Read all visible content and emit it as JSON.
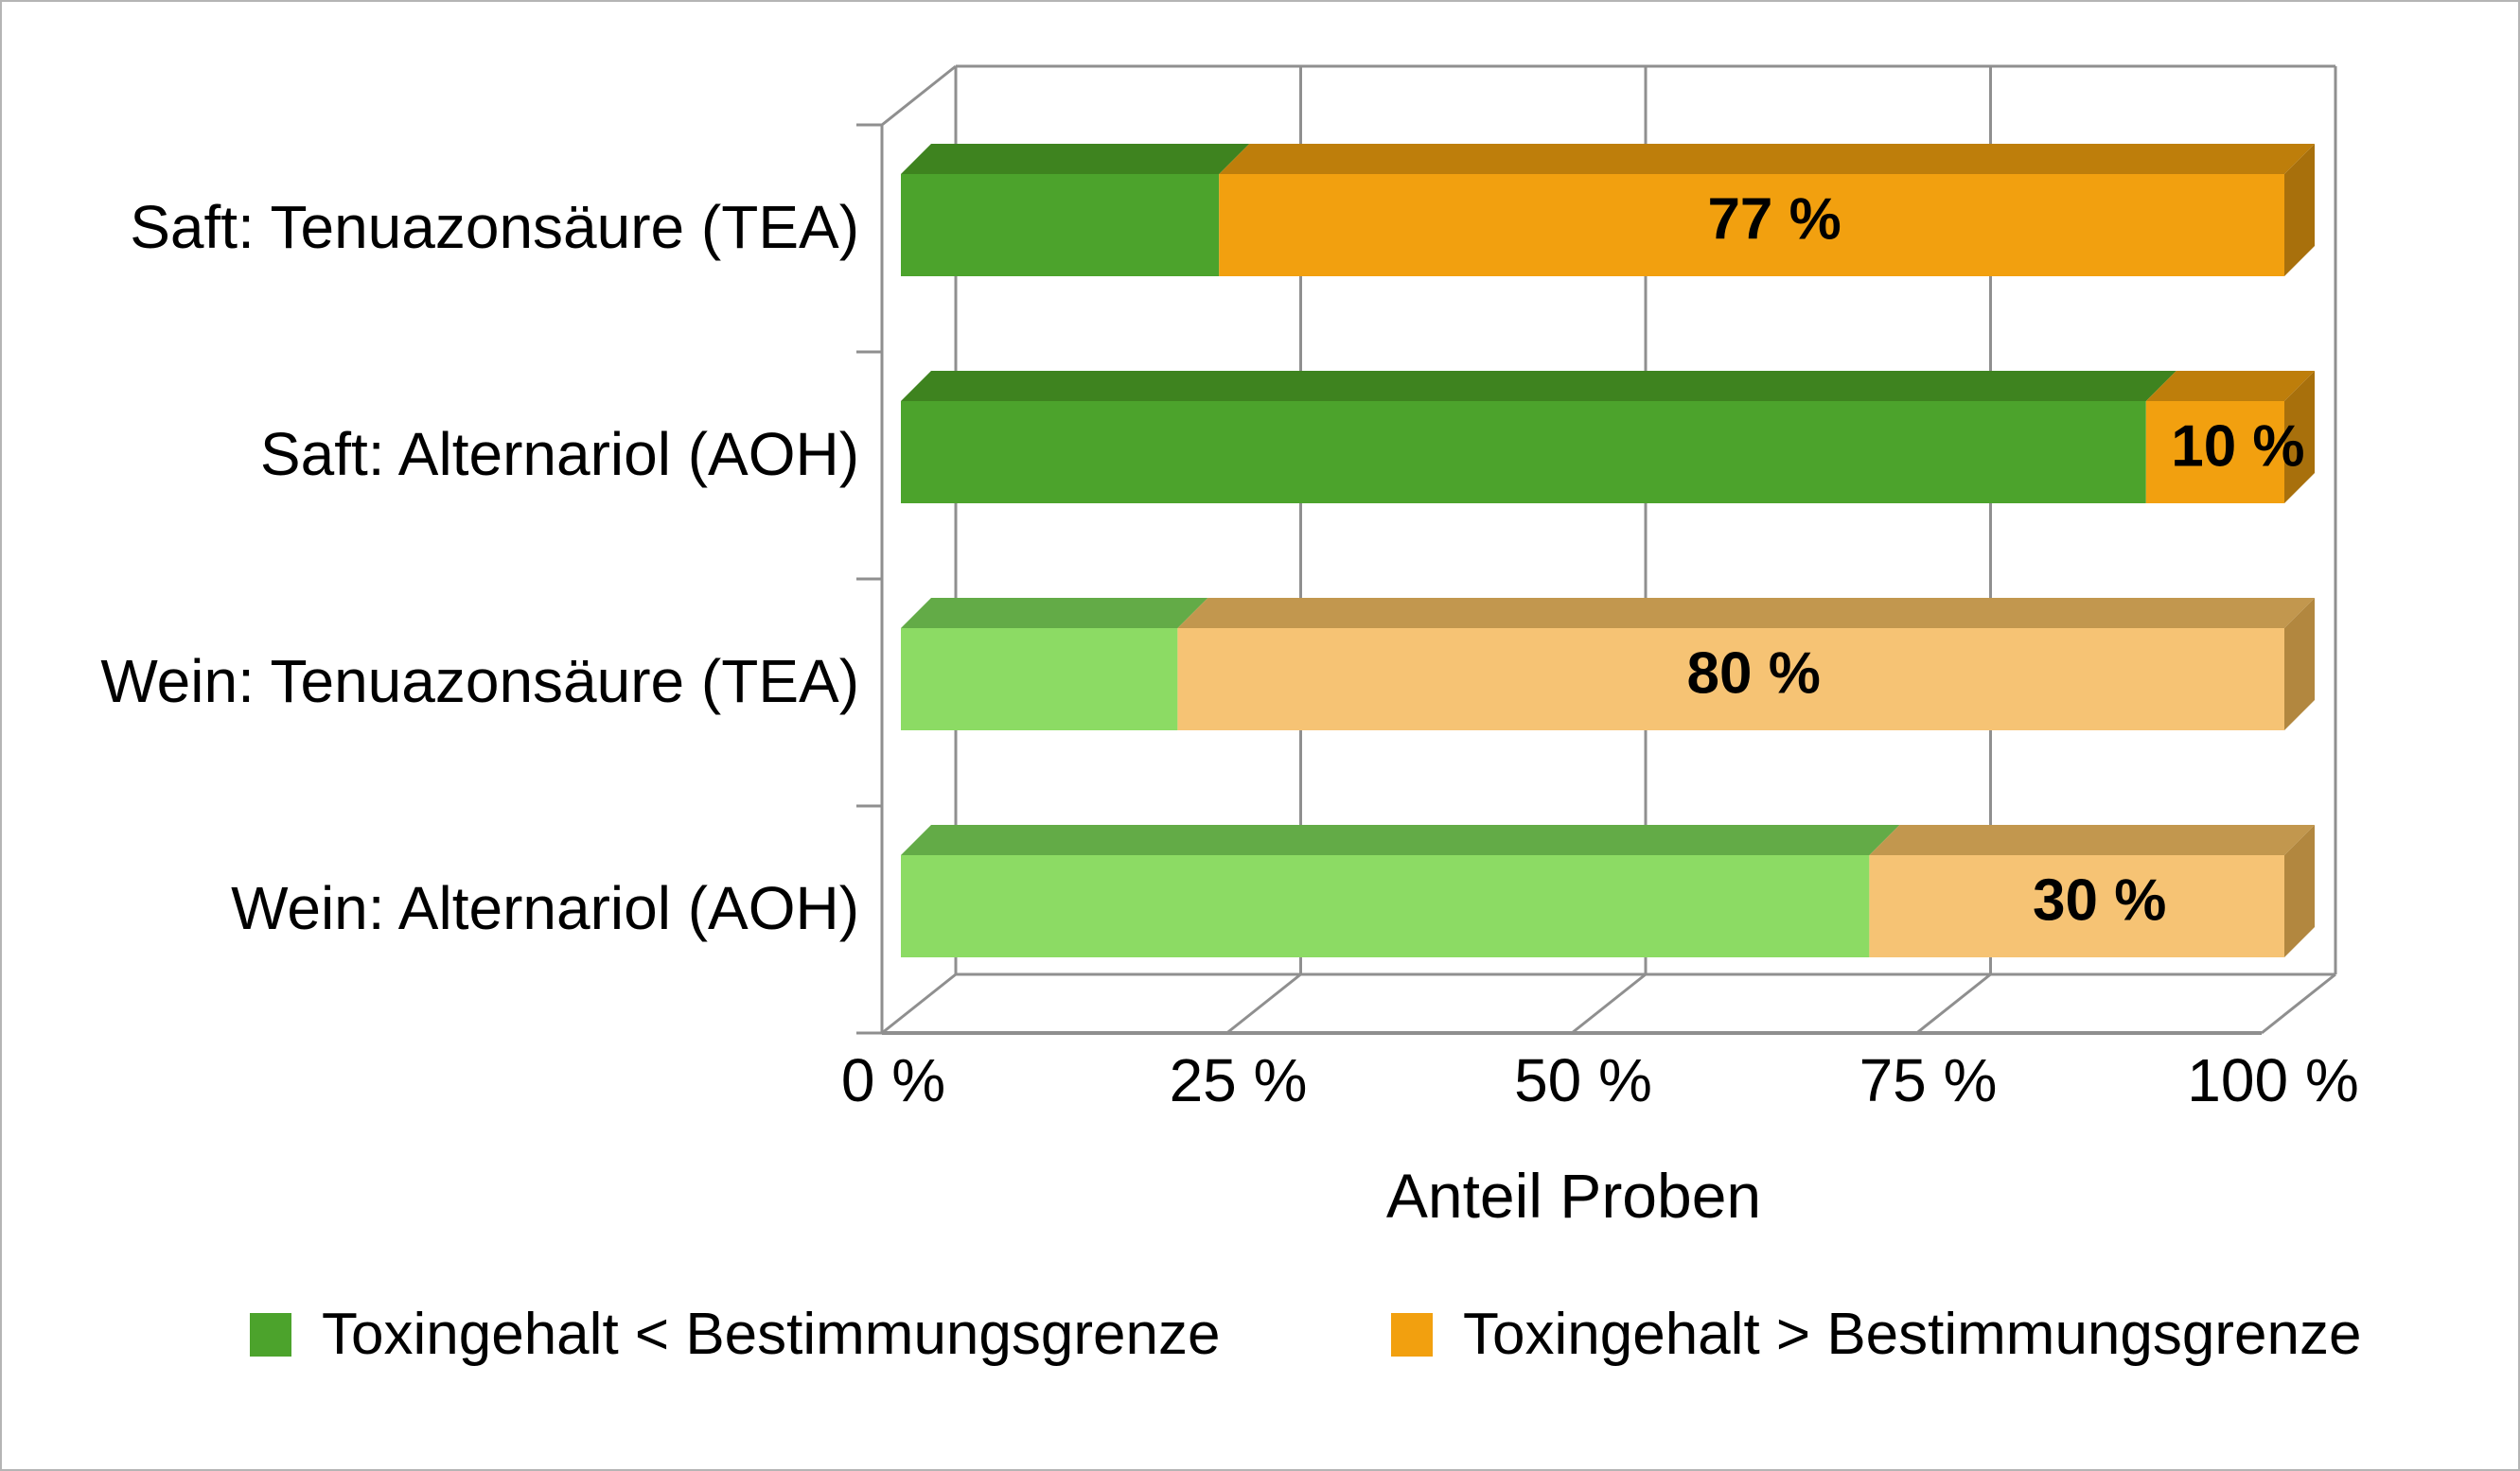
{
  "chart_data": {
    "type": "bar",
    "variant": "3d_horizontal_stacked",
    "title": "",
    "xlabel": "Anteil Proben",
    "x_range": [
      0,
      100
    ],
    "x_tick_values": [
      0,
      25,
      50,
      75,
      100
    ],
    "x_tick_labels": [
      "0 %",
      "25 %",
      "50 %",
      "75 %",
      "100 %"
    ],
    "grid": true,
    "legend_position": "bottom",
    "categories": [
      "Saft: Tenuazonsäure (TEA)",
      "Saft: Alternariol (AOH)",
      "Wein: Tenuazonsäure (TEA)",
      "Wein: Alternariol (AOH)"
    ],
    "series": [
      {
        "name": "Toxingehalt < Bestimmungsgrenze",
        "legend_color": "#4CA32C",
        "values": [
          23,
          90,
          20,
          70
        ]
      },
      {
        "name": "Toxingehalt > Bestimmungsgrenze",
        "legend_color": "#F2A00F",
        "values": [
          77,
          10,
          80,
          30
        ]
      }
    ],
    "bar_labels": [
      "77 %",
      "10 %",
      "80 %",
      "30 %"
    ],
    "row_colors": [
      {
        "green_front": "#4CA32C",
        "green_top": "#3E831F",
        "orange_front": "#F2A00F",
        "orange_top": "#BE7E0B",
        "orange_side": "#A8700C"
      },
      {
        "green_front": "#4CA32C",
        "green_top": "#3E831F",
        "orange_front": "#F2A00F",
        "orange_top": "#BE7E0B",
        "orange_side": "#A8700C"
      },
      {
        "green_front": "#8CDB64",
        "green_top": "#63AB47",
        "orange_front": "#F6C374",
        "orange_top": "#C2974E",
        "orange_side": "#B2873F"
      },
      {
        "green_front": "#8CDB64",
        "green_top": "#63AB47",
        "orange_front": "#F6C374",
        "orange_top": "#C2974E",
        "orange_side": "#B2873F"
      }
    ],
    "frame_color": "#8F8F8F",
    "text_color": "#000000",
    "background": "#FFFFFF"
  }
}
